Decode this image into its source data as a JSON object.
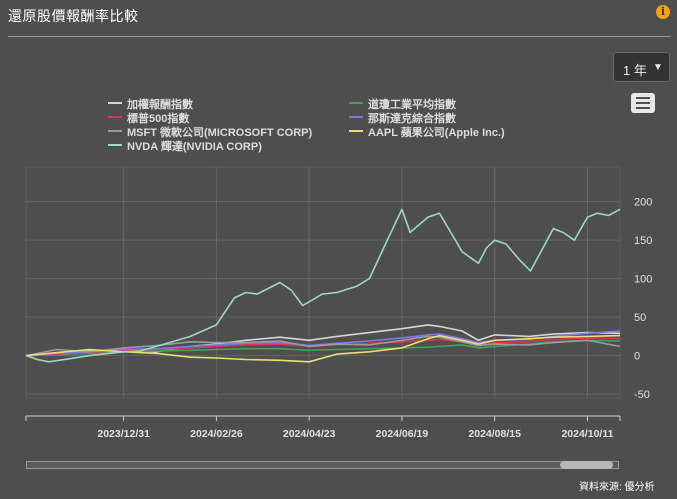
{
  "title": "還原股價報酬率比較",
  "period_button": {
    "label": "1 年",
    "caret": "▼"
  },
  "menu_icon": "hamburger-icon",
  "info_icon": "info-icon",
  "source": "資料來源: 優分析",
  "colors": {
    "background": "#4e4e4e",
    "weighted": "#d6d6d6",
    "dow": "#3fa35a",
    "sp500": "#e0305a",
    "nasdaq": "#7a7ae8",
    "msft": "#9a9a9a",
    "aapl": "#e8e070",
    "nvda": "#9fd6c4"
  },
  "chart_data": {
    "type": "line",
    "title": "",
    "xlabel": "",
    "ylabel": "",
    "x_tick_labels": [
      "2023/12/31",
      "2024/02/26",
      "2024/04/23",
      "2024/06/19",
      "2024/08/15",
      "2024/10/11"
    ],
    "y_ticks": [
      200,
      150,
      100,
      50,
      0,
      -50
    ],
    "ylim": [
      -55,
      245
    ],
    "grid": true,
    "legend_position": "top",
    "series": [
      {
        "name": "加權報酬指數",
        "key": "weighted",
        "points": [
          [
            "2023-11-01",
            0
          ],
          [
            "2023-11-20",
            2
          ],
          [
            "2023-12-10",
            6
          ],
          [
            "2023-12-31",
            8
          ],
          [
            "2024-01-20",
            5
          ],
          [
            "2024-02-10",
            12
          ],
          [
            "2024-02-26",
            15
          ],
          [
            "2024-03-15",
            20
          ],
          [
            "2024-04-05",
            24
          ],
          [
            "2024-04-23",
            20
          ],
          [
            "2024-05-10",
            25
          ],
          [
            "2024-05-30",
            30
          ],
          [
            "2024-06-19",
            35
          ],
          [
            "2024-07-05",
            40
          ],
          [
            "2024-07-12",
            38
          ],
          [
            "2024-07-26",
            32
          ],
          [
            "2024-08-05",
            20
          ],
          [
            "2024-08-15",
            27
          ],
          [
            "2024-09-05",
            25
          ],
          [
            "2024-09-20",
            28
          ],
          [
            "2024-10-11",
            30
          ],
          [
            "2024-10-31",
            29
          ]
        ]
      },
      {
        "name": "道瓊工業平均指數",
        "key": "dow",
        "points": [
          [
            "2023-11-01",
            0
          ],
          [
            "2023-11-20",
            1
          ],
          [
            "2023-12-10",
            3
          ],
          [
            "2023-12-31",
            5
          ],
          [
            "2024-01-20",
            6
          ],
          [
            "2024-02-10",
            7
          ],
          [
            "2024-02-26",
            8
          ],
          [
            "2024-03-15",
            9
          ],
          [
            "2024-04-05",
            9
          ],
          [
            "2024-04-23",
            7
          ],
          [
            "2024-05-10",
            8
          ],
          [
            "2024-05-30",
            9
          ],
          [
            "2024-06-19",
            10
          ],
          [
            "2024-07-05",
            11
          ],
          [
            "2024-07-12",
            12
          ],
          [
            "2024-07-26",
            14
          ],
          [
            "2024-08-05",
            10
          ],
          [
            "2024-08-15",
            12
          ],
          [
            "2024-09-05",
            15
          ],
          [
            "2024-09-20",
            18
          ],
          [
            "2024-10-11",
            20
          ],
          [
            "2024-10-31",
            19
          ]
        ]
      },
      {
        "name": "標普500指數",
        "key": "sp500",
        "points": [
          [
            "2023-11-01",
            0
          ],
          [
            "2023-11-20",
            2
          ],
          [
            "2023-12-10",
            4
          ],
          [
            "2023-12-31",
            7
          ],
          [
            "2024-01-20",
            8
          ],
          [
            "2024-02-10",
            10
          ],
          [
            "2024-02-26",
            12
          ],
          [
            "2024-03-15",
            14
          ],
          [
            "2024-04-05",
            15
          ],
          [
            "2024-04-23",
            12
          ],
          [
            "2024-05-10",
            14
          ],
          [
            "2024-05-30",
            16
          ],
          [
            "2024-06-19",
            18
          ],
          [
            "2024-07-05",
            20
          ],
          [
            "2024-07-12",
            21
          ],
          [
            "2024-07-26",
            18
          ],
          [
            "2024-08-05",
            14
          ],
          [
            "2024-08-15",
            17
          ],
          [
            "2024-09-05",
            18
          ],
          [
            "2024-09-20",
            21
          ],
          [
            "2024-10-11",
            23
          ],
          [
            "2024-10-31",
            22
          ]
        ]
      },
      {
        "name": "那斯達克綜合指數",
        "key": "nasdaq",
        "points": [
          [
            "2023-11-01",
            0
          ],
          [
            "2023-11-20",
            3
          ],
          [
            "2023-12-10",
            5
          ],
          [
            "2023-12-31",
            8
          ],
          [
            "2024-01-20",
            9
          ],
          [
            "2024-02-10",
            12
          ],
          [
            "2024-02-26",
            14
          ],
          [
            "2024-03-15",
            16
          ],
          [
            "2024-04-05",
            17
          ],
          [
            "2024-04-23",
            13
          ],
          [
            "2024-05-10",
            16
          ],
          [
            "2024-05-30",
            19
          ],
          [
            "2024-06-19",
            23
          ],
          [
            "2024-07-05",
            27
          ],
          [
            "2024-07-12",
            28
          ],
          [
            "2024-07-26",
            22
          ],
          [
            "2024-08-05",
            17
          ],
          [
            "2024-08-15",
            20
          ],
          [
            "2024-09-05",
            21
          ],
          [
            "2024-09-20",
            25
          ],
          [
            "2024-10-11",
            29
          ],
          [
            "2024-10-31",
            32
          ]
        ]
      },
      {
        "name": "MSFT 微軟公司(MICROSOFT CORP)",
        "key": "msft",
        "points": [
          [
            "2023-11-01",
            0
          ],
          [
            "2023-11-20",
            8
          ],
          [
            "2023-12-10",
            5
          ],
          [
            "2023-12-31",
            10
          ],
          [
            "2024-01-20",
            13
          ],
          [
            "2024-02-10",
            18
          ],
          [
            "2024-02-26",
            17
          ],
          [
            "2024-03-15",
            17
          ],
          [
            "2024-04-05",
            19
          ],
          [
            "2024-04-23",
            12
          ],
          [
            "2024-05-10",
            15
          ],
          [
            "2024-05-30",
            14
          ],
          [
            "2024-06-19",
            20
          ],
          [
            "2024-07-05",
            25
          ],
          [
            "2024-07-12",
            24
          ],
          [
            "2024-07-26",
            18
          ],
          [
            "2024-08-05",
            13
          ],
          [
            "2024-08-15",
            15
          ],
          [
            "2024-09-05",
            14
          ],
          [
            "2024-09-20",
            17
          ],
          [
            "2024-10-11",
            20
          ],
          [
            "2024-10-31",
            12
          ]
        ]
      },
      {
        "name": "AAPL 蘋果公司(Apple Inc.)",
        "key": "aapl",
        "points": [
          [
            "2023-11-01",
            0
          ],
          [
            "2023-11-20",
            4
          ],
          [
            "2023-12-10",
            8
          ],
          [
            "2023-12-31",
            5
          ],
          [
            "2024-01-20",
            3
          ],
          [
            "2024-02-10",
            -2
          ],
          [
            "2024-02-26",
            -3
          ],
          [
            "2024-03-15",
            -5
          ],
          [
            "2024-04-05",
            -6
          ],
          [
            "2024-04-23",
            -8
          ],
          [
            "2024-05-10",
            2
          ],
          [
            "2024-05-30",
            5
          ],
          [
            "2024-06-19",
            10
          ],
          [
            "2024-07-05",
            22
          ],
          [
            "2024-07-12",
            26
          ],
          [
            "2024-07-26",
            20
          ],
          [
            "2024-08-05",
            15
          ],
          [
            "2024-08-15",
            20
          ],
          [
            "2024-09-05",
            22
          ],
          [
            "2024-09-20",
            24
          ],
          [
            "2024-10-11",
            25
          ],
          [
            "2024-10-31",
            26
          ]
        ]
      },
      {
        "name": "NVDA 輝達(NVIDIA CORP)",
        "key": "nvda",
        "points": [
          [
            "2023-11-01",
            0
          ],
          [
            "2023-11-08",
            -5
          ],
          [
            "2023-11-15",
            -8
          ],
          [
            "2023-11-28",
            -4
          ],
          [
            "2023-12-10",
            0
          ],
          [
            "2023-12-31",
            5
          ],
          [
            "2024-01-10",
            6
          ],
          [
            "2024-01-25",
            15
          ],
          [
            "2024-02-10",
            25
          ],
          [
            "2024-02-26",
            40
          ],
          [
            "2024-03-08",
            75
          ],
          [
            "2024-03-15",
            82
          ],
          [
            "2024-03-22",
            80
          ],
          [
            "2024-04-05",
            95
          ],
          [
            "2024-04-12",
            85
          ],
          [
            "2024-04-19",
            65
          ],
          [
            "2024-04-23",
            70
          ],
          [
            "2024-05-01",
            80
          ],
          [
            "2024-05-10",
            82
          ],
          [
            "2024-05-22",
            90
          ],
          [
            "2024-05-30",
            100
          ],
          [
            "2024-06-10",
            150
          ],
          [
            "2024-06-19",
            190
          ],
          [
            "2024-06-24",
            160
          ],
          [
            "2024-07-05",
            180
          ],
          [
            "2024-07-12",
            185
          ],
          [
            "2024-07-19",
            160
          ],
          [
            "2024-07-26",
            135
          ],
          [
            "2024-08-05",
            120
          ],
          [
            "2024-08-10",
            140
          ],
          [
            "2024-08-15",
            150
          ],
          [
            "2024-08-22",
            145
          ],
          [
            "2024-08-30",
            125
          ],
          [
            "2024-09-06",
            110
          ],
          [
            "2024-09-15",
            145
          ],
          [
            "2024-09-20",
            165
          ],
          [
            "2024-09-26",
            160
          ],
          [
            "2024-10-03",
            150
          ],
          [
            "2024-10-11",
            180
          ],
          [
            "2024-10-17",
            185
          ],
          [
            "2024-10-24",
            182
          ],
          [
            "2024-10-31",
            190
          ]
        ]
      }
    ]
  }
}
